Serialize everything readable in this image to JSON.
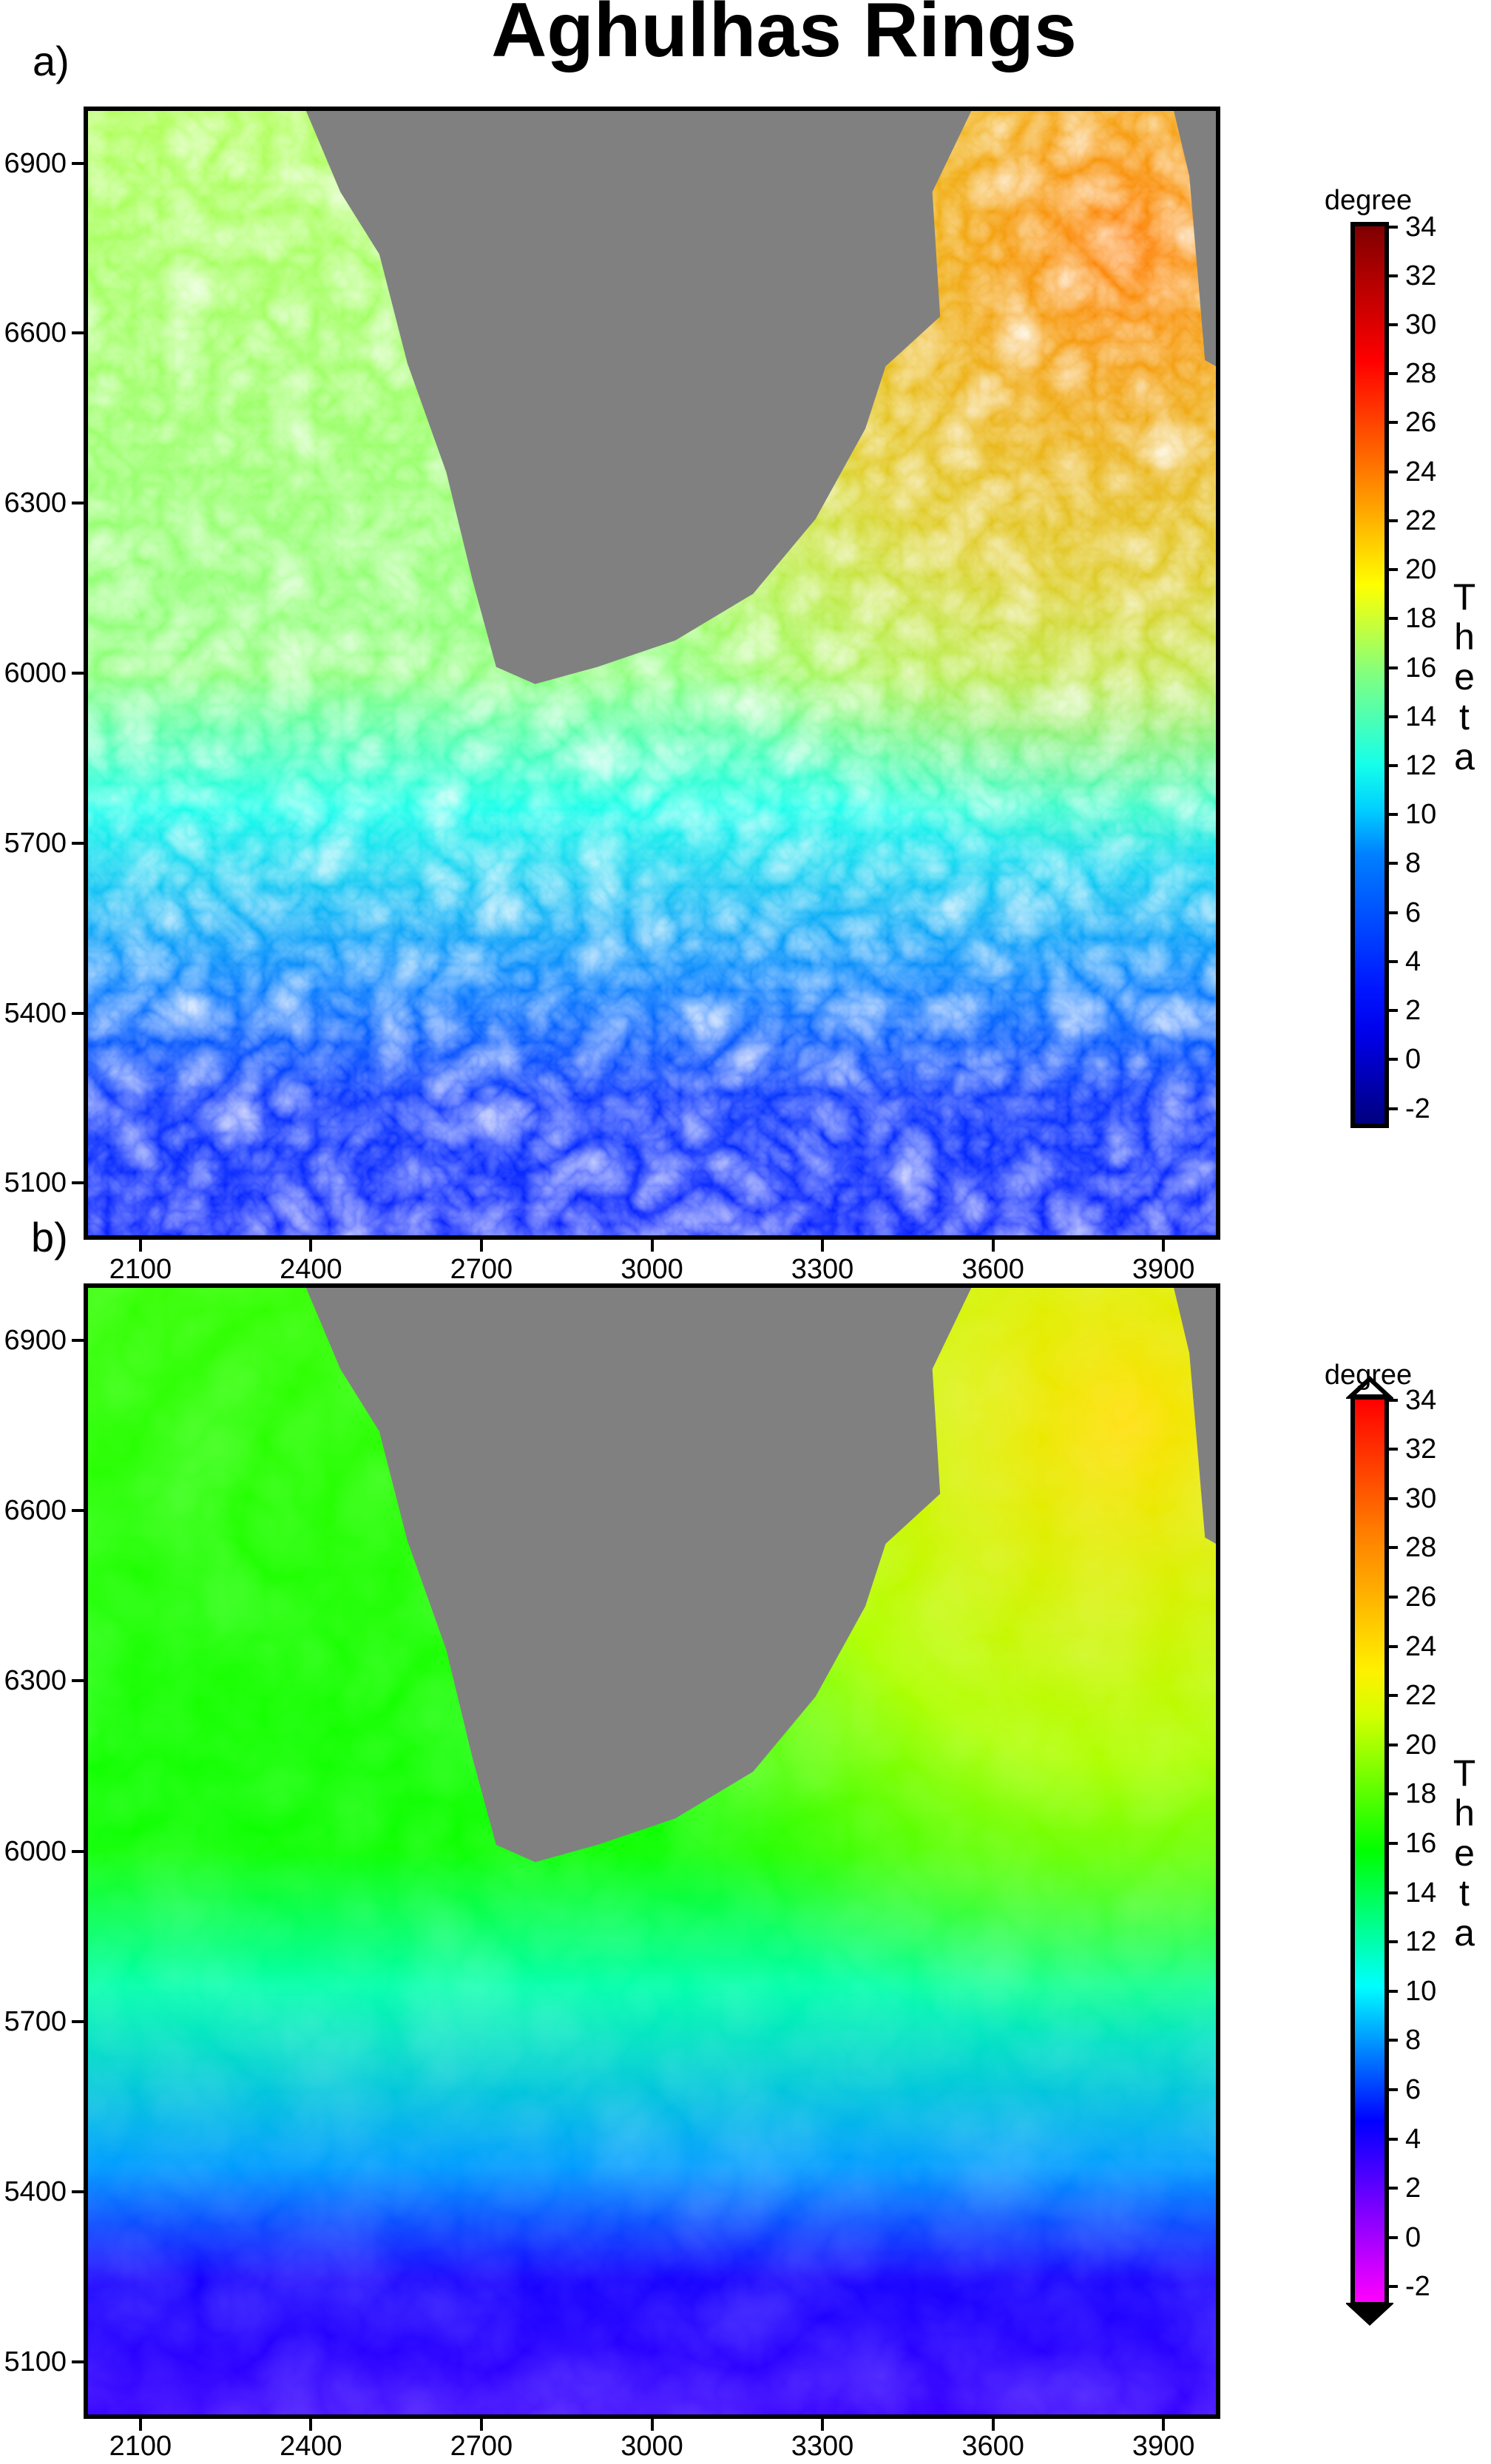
{
  "title": "Aghulhas Rings",
  "chart_data": [
    {
      "panel_label": "a)",
      "type": "heatmap",
      "shading": "hillshaded",
      "colormap": "jet",
      "land_color": "#808080",
      "xlim": [
        2000,
        4000
      ],
      "ylim": [
        5000,
        7000
      ],
      "xticks": [
        2100,
        2400,
        2700,
        3000,
        3300,
        3600,
        3900
      ],
      "yticks": [
        5100,
        5400,
        5700,
        6000,
        6300,
        6600,
        6900
      ],
      "colorbar": {
        "unit": "degree",
        "label": "Theta",
        "range": [
          -2.8,
          34.2
        ],
        "ticks": [
          -2,
          0,
          2,
          4,
          6,
          8,
          10,
          12,
          14,
          16,
          18,
          20,
          22,
          24,
          26,
          28,
          30,
          32,
          34
        ],
        "extend": "none"
      },
      "field_summary": {
        "north_west_theta": 17,
        "north_east_theta": 24,
        "south_theta": 3
      }
    },
    {
      "panel_label": "b)",
      "type": "heatmap",
      "shading": "none",
      "colormap": "rainbow",
      "land_color": "#808080",
      "xlim": [
        2000,
        4000
      ],
      "ylim": [
        5000,
        7000
      ],
      "xticks": [
        2100,
        2400,
        2700,
        3000,
        3300,
        3600,
        3900
      ],
      "yticks": [
        5100,
        5400,
        5700,
        6000,
        6300,
        6600,
        6900
      ],
      "colorbar": {
        "unit": "degree",
        "label": "Theta",
        "range": [
          -2.8,
          34.2
        ],
        "ticks": [
          -2,
          0,
          2,
          4,
          6,
          8,
          10,
          12,
          14,
          16,
          18,
          20,
          22,
          24,
          26,
          28,
          30,
          32,
          34
        ],
        "extend": "both"
      },
      "field_summary": {
        "north_west_theta": 17,
        "north_east_theta": 24,
        "south_theta": 3
      }
    }
  ]
}
